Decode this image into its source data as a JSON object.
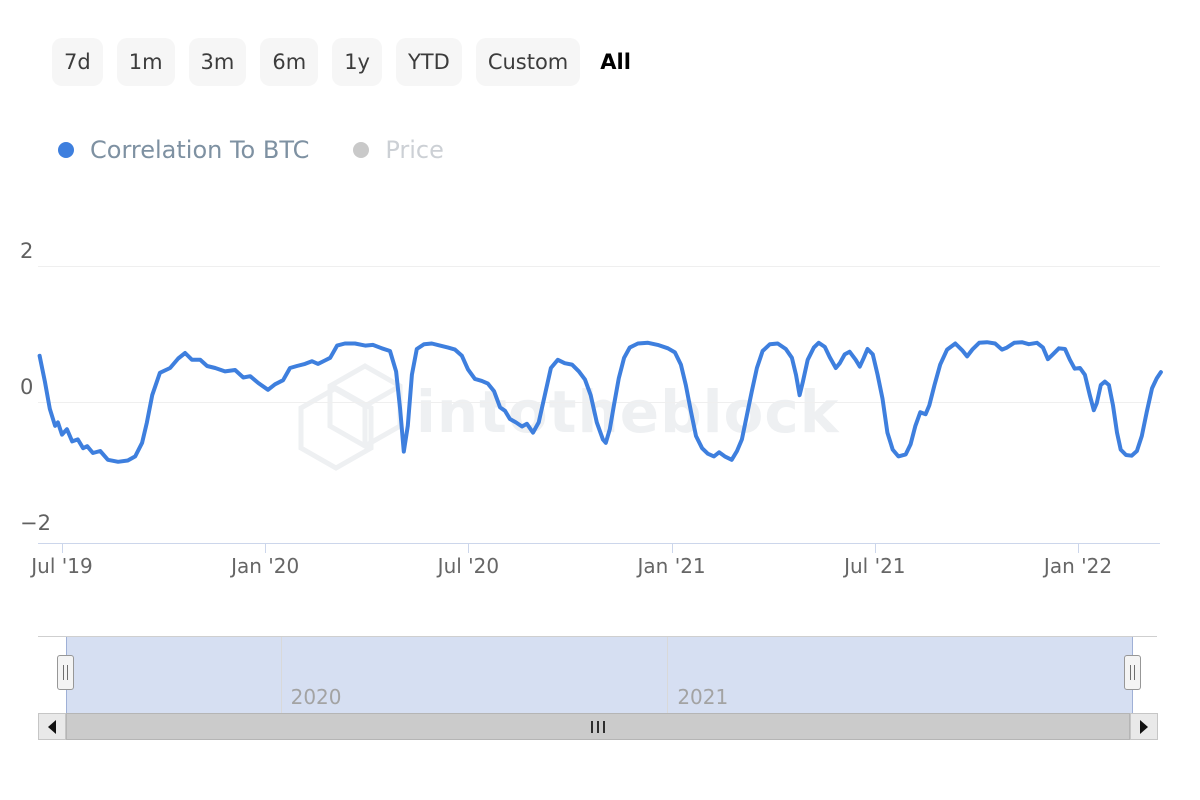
{
  "toolbar": {
    "ranges": [
      "7d",
      "1m",
      "3m",
      "6m",
      "1y",
      "YTD",
      "Custom",
      "All"
    ],
    "active_range": "All"
  },
  "legend": {
    "series": [
      {
        "label": "Correlation To BTC",
        "color": "#3e7fde",
        "active": true
      },
      {
        "label": "Price",
        "color": "#c9c9c9",
        "active": false
      }
    ]
  },
  "watermark": {
    "text": "intotheblock",
    "color": "#eef0f2"
  },
  "colors": {
    "line": "#3e7fde",
    "axis": "#ccd6eb",
    "grid": "#efefef",
    "nav_mask": "#d6dff2"
  },
  "icons": {
    "scroll_left": "left-arrow-icon",
    "scroll_right": "right-arrow-icon",
    "handle_grip": "vertical-grip-icon",
    "scrollbar_rifle": "III",
    "legend_marker": "circle-icon"
  },
  "chart_data": {
    "type": "line",
    "title": "",
    "legend_position": "top",
    "grid": true,
    "xaxis": {
      "range": [
        2019.44,
        2022.21
      ],
      "ticks": [
        {
          "pos": 2019.5,
          "label": "Jul '19"
        },
        {
          "pos": 2020.0,
          "label": "Jan '20"
        },
        {
          "pos": 2020.5,
          "label": "Jul '20"
        },
        {
          "pos": 2021.0,
          "label": "Jan '21"
        },
        {
          "pos": 2021.5,
          "label": "Jul '21"
        },
        {
          "pos": 2022.0,
          "label": "Jan '22"
        }
      ]
    },
    "yaxis": {
      "range": [
        -2,
        2
      ],
      "ticks": [
        {
          "value": 2,
          "label": "2",
          "grid": true
        },
        {
          "value": 0,
          "label": "0",
          "grid": true
        },
        {
          "value": -2,
          "label": "−2",
          "grid": false
        }
      ]
    },
    "navigator": {
      "selected_range": "all",
      "labels": [
        {
          "pos": 2020.0,
          "label": "2020"
        },
        {
          "pos": 2021.0,
          "label": "2021"
        }
      ]
    },
    "series": [
      {
        "name": "Correlation To BTC",
        "color": "#3e7fde",
        "points": [
          [
            2019.445,
            0.68
          ],
          [
            2019.458,
            0.3
          ],
          [
            2019.47,
            -0.1
          ],
          [
            2019.483,
            -0.35
          ],
          [
            2019.49,
            -0.3
          ],
          [
            2019.5,
            -0.48
          ],
          [
            2019.512,
            -0.4
          ],
          [
            2019.525,
            -0.58
          ],
          [
            2019.539,
            -0.55
          ],
          [
            2019.552,
            -0.68
          ],
          [
            2019.562,
            -0.65
          ],
          [
            2019.576,
            -0.75
          ],
          [
            2019.594,
            -0.72
          ],
          [
            2019.613,
            -0.85
          ],
          [
            2019.638,
            -0.88
          ],
          [
            2019.662,
            -0.86
          ],
          [
            2019.68,
            -0.8
          ],
          [
            2019.697,
            -0.6
          ],
          [
            2019.709,
            -0.3
          ],
          [
            2019.722,
            0.1
          ],
          [
            2019.741,
            0.43
          ],
          [
            2019.766,
            0.5
          ],
          [
            2019.786,
            0.64
          ],
          [
            2019.803,
            0.72
          ],
          [
            2019.82,
            0.62
          ],
          [
            2019.84,
            0.62
          ],
          [
            2019.857,
            0.53
          ],
          [
            2019.877,
            0.5
          ],
          [
            2019.901,
            0.45
          ],
          [
            2019.926,
            0.47
          ],
          [
            2019.946,
            0.36
          ],
          [
            2019.963,
            0.38
          ],
          [
            2019.983,
            0.28
          ],
          [
            2020.007,
            0.18
          ],
          [
            2020.024,
            0.26
          ],
          [
            2020.044,
            0.32
          ],
          [
            2020.061,
            0.5
          ],
          [
            2020.078,
            0.53
          ],
          [
            2020.098,
            0.56
          ],
          [
            2020.115,
            0.6
          ],
          [
            2020.13,
            0.56
          ],
          [
            2020.147,
            0.61
          ],
          [
            2020.16,
            0.65
          ],
          [
            2020.177,
            0.83
          ],
          [
            2020.196,
            0.86
          ],
          [
            2020.221,
            0.86
          ],
          [
            2020.246,
            0.83
          ],
          [
            2020.265,
            0.84
          ],
          [
            2020.287,
            0.79
          ],
          [
            2020.307,
            0.75
          ],
          [
            2020.322,
            0.45
          ],
          [
            2020.332,
            -0.1
          ],
          [
            2020.341,
            -0.73
          ],
          [
            2020.351,
            -0.35
          ],
          [
            2020.361,
            0.4
          ],
          [
            2020.373,
            0.78
          ],
          [
            2020.391,
            0.85
          ],
          [
            2020.41,
            0.86
          ],
          [
            2020.43,
            0.83
          ],
          [
            2020.45,
            0.8
          ],
          [
            2020.467,
            0.77
          ],
          [
            2020.484,
            0.68
          ],
          [
            2020.499,
            0.48
          ],
          [
            2020.516,
            0.34
          ],
          [
            2020.533,
            0.31
          ],
          [
            2020.548,
            0.27
          ],
          [
            2020.563,
            0.16
          ],
          [
            2020.578,
            -0.08
          ],
          [
            2020.59,
            -0.13
          ],
          [
            2020.602,
            -0.25
          ],
          [
            2020.617,
            -0.3
          ],
          [
            2020.632,
            -0.36
          ],
          [
            2020.644,
            -0.32
          ],
          [
            2020.659,
            -0.45
          ],
          [
            2020.673,
            -0.3
          ],
          [
            2020.688,
            0.1
          ],
          [
            2020.703,
            0.5
          ],
          [
            2020.72,
            0.62
          ],
          [
            2020.737,
            0.57
          ],
          [
            2020.755,
            0.55
          ],
          [
            2020.772,
            0.45
          ],
          [
            2020.787,
            0.33
          ],
          [
            2020.801,
            0.1
          ],
          [
            2020.816,
            -0.3
          ],
          [
            2020.831,
            -0.55
          ],
          [
            2020.838,
            -0.6
          ],
          [
            2020.848,
            -0.4
          ],
          [
            2020.858,
            -0.05
          ],
          [
            2020.87,
            0.35
          ],
          [
            2020.883,
            0.65
          ],
          [
            2020.897,
            0.8
          ],
          [
            2020.917,
            0.86
          ],
          [
            2020.942,
            0.87
          ],
          [
            2020.966,
            0.84
          ],
          [
            2020.991,
            0.79
          ],
          [
            2021.008,
            0.73
          ],
          [
            2021.023,
            0.55
          ],
          [
            2021.035,
            0.25
          ],
          [
            2021.048,
            -0.15
          ],
          [
            2021.06,
            -0.5
          ],
          [
            2021.075,
            -0.68
          ],
          [
            2021.089,
            -0.76
          ],
          [
            2021.104,
            -0.8
          ],
          [
            2021.117,
            -0.74
          ],
          [
            2021.131,
            -0.8
          ],
          [
            2021.148,
            -0.85
          ],
          [
            2021.161,
            -0.72
          ],
          [
            2021.173,
            -0.55
          ],
          [
            2021.185,
            -0.2
          ],
          [
            2021.197,
            0.15
          ],
          [
            2021.21,
            0.5
          ],
          [
            2021.224,
            0.75
          ],
          [
            2021.242,
            0.85
          ],
          [
            2021.261,
            0.86
          ],
          [
            2021.281,
            0.78
          ],
          [
            2021.296,
            0.65
          ],
          [
            2021.306,
            0.4
          ],
          [
            2021.315,
            0.1
          ],
          [
            2021.323,
            0.3
          ],
          [
            2021.335,
            0.62
          ],
          [
            2021.35,
            0.8
          ],
          [
            2021.362,
            0.87
          ],
          [
            2021.377,
            0.81
          ],
          [
            2021.389,
            0.66
          ],
          [
            2021.404,
            0.5
          ],
          [
            2021.414,
            0.57
          ],
          [
            2021.426,
            0.7
          ],
          [
            2021.438,
            0.74
          ],
          [
            2021.453,
            0.62
          ],
          [
            2021.463,
            0.52
          ],
          [
            2021.473,
            0.65
          ],
          [
            2021.482,
            0.78
          ],
          [
            2021.495,
            0.7
          ],
          [
            2021.507,
            0.4
          ],
          [
            2021.519,
            0.05
          ],
          [
            2021.531,
            -0.45
          ],
          [
            2021.544,
            -0.7
          ],
          [
            2021.558,
            -0.8
          ],
          [
            2021.576,
            -0.77
          ],
          [
            2021.588,
            -0.62
          ],
          [
            2021.6,
            -0.35
          ],
          [
            2021.612,
            -0.15
          ],
          [
            2021.625,
            -0.18
          ],
          [
            2021.634,
            -0.05
          ],
          [
            2021.647,
            0.25
          ],
          [
            2021.661,
            0.55
          ],
          [
            2021.678,
            0.77
          ],
          [
            2021.698,
            0.86
          ],
          [
            2021.715,
            0.76
          ],
          [
            2021.727,
            0.67
          ],
          [
            2021.74,
            0.77
          ],
          [
            2021.757,
            0.87
          ],
          [
            2021.776,
            0.88
          ],
          [
            2021.796,
            0.86
          ],
          [
            2021.813,
            0.77
          ],
          [
            2021.825,
            0.8
          ],
          [
            2021.843,
            0.87
          ],
          [
            2021.862,
            0.88
          ],
          [
            2021.879,
            0.85
          ],
          [
            2021.899,
            0.87
          ],
          [
            2021.914,
            0.8
          ],
          [
            2021.926,
            0.63
          ],
          [
            2021.938,
            0.7
          ],
          [
            2021.953,
            0.79
          ],
          [
            2021.968,
            0.78
          ],
          [
            2021.98,
            0.62
          ],
          [
            2021.992,
            0.49
          ],
          [
            2022.005,
            0.5
          ],
          [
            2022.017,
            0.4
          ],
          [
            2022.029,
            0.1
          ],
          [
            2022.039,
            -0.12
          ],
          [
            2022.046,
            -0.02
          ],
          [
            2022.056,
            0.25
          ],
          [
            2022.066,
            0.3
          ],
          [
            2022.076,
            0.25
          ],
          [
            2022.086,
            -0.05
          ],
          [
            2022.096,
            -0.45
          ],
          [
            2022.105,
            -0.7
          ],
          [
            2022.118,
            -0.78
          ],
          [
            2022.132,
            -0.79
          ],
          [
            2022.145,
            -0.72
          ],
          [
            2022.157,
            -0.5
          ],
          [
            2022.169,
            -0.15
          ],
          [
            2022.182,
            0.2
          ],
          [
            2022.194,
            0.35
          ],
          [
            2022.204,
            0.44
          ]
        ]
      }
    ]
  }
}
